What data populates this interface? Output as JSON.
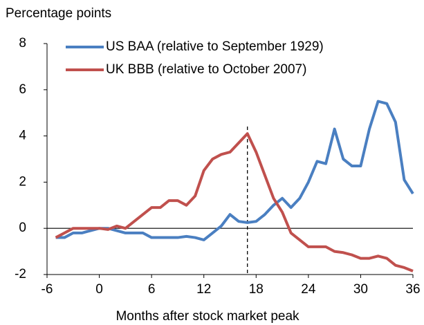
{
  "chart_data": {
    "type": "line",
    "y_axis_label": "Percentage points",
    "x_axis_label": "Months after stock market peak",
    "x": [
      -5,
      -4,
      -3,
      -2,
      -1,
      0,
      1,
      2,
      3,
      4,
      5,
      6,
      7,
      8,
      9,
      10,
      11,
      12,
      13,
      14,
      15,
      16,
      17,
      18,
      19,
      20,
      21,
      22,
      23,
      24,
      25,
      26,
      27,
      28,
      29,
      30,
      31,
      32,
      33,
      34,
      35,
      36
    ],
    "series": [
      {
        "name": "US BAA  (relative to September 1929)",
        "color": "#4a7fc1",
        "values": [
          -0.4,
          -0.4,
          -0.2,
          -0.2,
          -0.1,
          0,
          0,
          -0.1,
          -0.2,
          -0.2,
          -0.2,
          -0.4,
          -0.4,
          -0.4,
          -0.4,
          -0.35,
          -0.4,
          -0.5,
          -0.2,
          0.1,
          0.6,
          0.3,
          0.25,
          0.3,
          0.6,
          1.0,
          1.3,
          0.9,
          1.3,
          2.0,
          2.9,
          2.8,
          4.3,
          3.0,
          2.7,
          2.7,
          4.3,
          5.5,
          5.4,
          4.6,
          2.1,
          1.5
        ]
      },
      {
        "name": "UK BBB (relative to October 2007)",
        "color": "#c0504d",
        "values": [
          -0.4,
          -0.2,
          0,
          0,
          0,
          0,
          -0.05,
          0.1,
          0,
          0.3,
          0.6,
          0.9,
          0.9,
          1.2,
          1.2,
          1.0,
          1.4,
          2.5,
          3.0,
          3.2,
          3.3,
          3.7,
          4.1,
          3.3,
          2.3,
          1.3,
          0.7,
          -0.2,
          -0.5,
          -0.8,
          -0.8,
          -0.8,
          -1.0,
          -1.05,
          -1.15,
          -1.3,
          -1.3,
          -1.2,
          -1.3,
          -1.6,
          -1.7,
          -1.85
        ]
      }
    ],
    "xlim": [
      -6,
      36
    ],
    "xticks": [
      -6,
      0,
      6,
      12,
      18,
      24,
      30,
      36
    ],
    "ylim": [
      -2,
      8
    ],
    "yticks": [
      -2,
      0,
      2,
      4,
      6,
      8
    ],
    "vline": 17,
    "zero_line": true,
    "grid": false
  }
}
